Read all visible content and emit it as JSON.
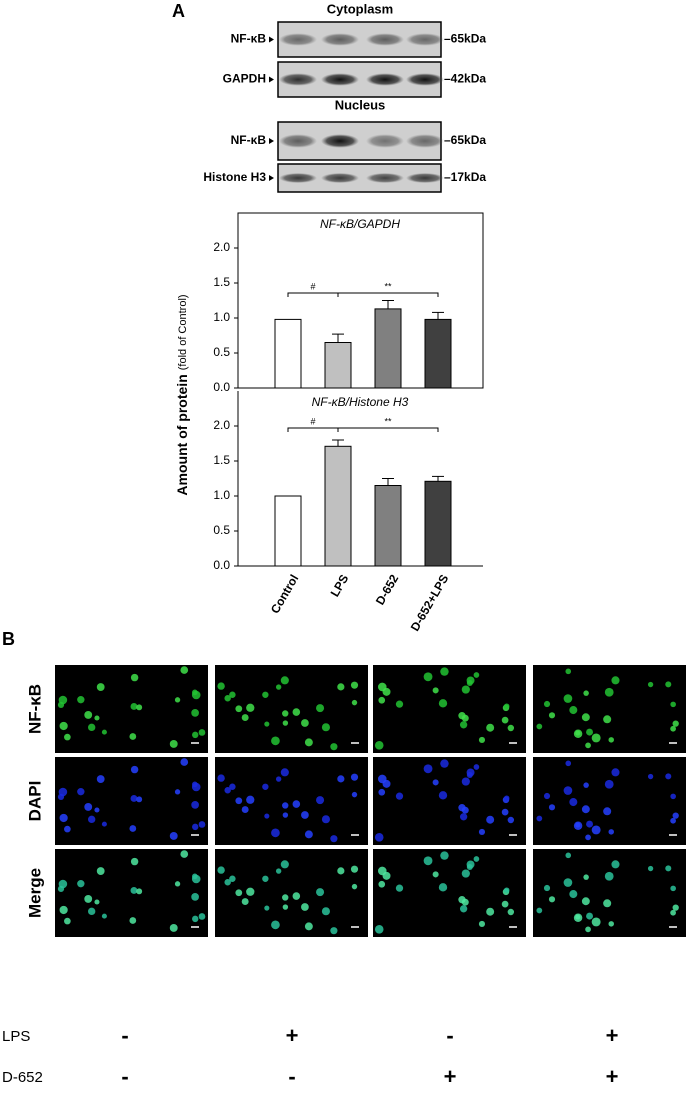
{
  "figure": {
    "panel_a": "A",
    "panel_b": "B",
    "blots": {
      "cytoplasm": "Cytoplasm",
      "nucleus": "Nucleus",
      "rows": [
        {
          "label": "NF-κB",
          "size": "–65kDa"
        },
        {
          "label": "GAPDH",
          "size": "–42kDa"
        },
        {
          "label": "NF-κB",
          "size": "–65kDa"
        },
        {
          "label": "Histone H3",
          "size": "–17kDa"
        }
      ]
    },
    "ylabel": "Amount of protein",
    "ylabel_unit": "(fold of Control)",
    "images": {
      "rows": [
        "NF-κB",
        "DAPI",
        "Merge"
      ]
    },
    "treatments": [
      {
        "name": "LPS",
        "signs": [
          "-",
          "+",
          "-",
          "+"
        ]
      },
      {
        "name": "D-652",
        "signs": [
          "-",
          "-",
          "+",
          "+"
        ]
      }
    ]
  },
  "chart_data": [
    {
      "type": "bar",
      "title": "NF-κB/GAPDH",
      "categories": [
        null,
        null,
        null,
        null
      ],
      "values": [
        0.98,
        0.65,
        1.13,
        0.98
      ],
      "errors": [
        null,
        0.12,
        0.12,
        0.1
      ],
      "colors": [
        "#ffffff",
        "#c0c0c0",
        "#808080",
        "#404040"
      ],
      "ylim": [
        0,
        2.5
      ],
      "yticks": [
        {
          "value": 0,
          "label": "0.0"
        },
        {
          "value": 0.5,
          "label": "0.5"
        },
        {
          "value": 1,
          "label": "1.0"
        },
        {
          "value": 1.5,
          "label": "1.5"
        },
        {
          "value": 2,
          "label": "2.0"
        }
      ],
      "annotations": [
        "#",
        "**"
      ]
    },
    {
      "type": "bar",
      "title": "NF-κB/Histone H3",
      "categories": [
        "Control",
        "LPS",
        "D-652",
        "D-652+LPS"
      ],
      "values": [
        1.0,
        1.71,
        1.15,
        1.21
      ],
      "errors": [
        null,
        0.09,
        0.1,
        0.07
      ],
      "colors": [
        "#ffffff",
        "#c0c0c0",
        "#808080",
        "#404040"
      ],
      "ylim": [
        0,
        2.5
      ],
      "yticks": [
        {
          "value": 0,
          "label": "0.0"
        },
        {
          "value": 0.5,
          "label": "0.5"
        },
        {
          "value": 1,
          "label": "1.0"
        },
        {
          "value": 1.5,
          "label": "1.5"
        },
        {
          "value": 2,
          "label": "2.0"
        }
      ],
      "annotations": [
        "#",
        "**"
      ]
    }
  ]
}
